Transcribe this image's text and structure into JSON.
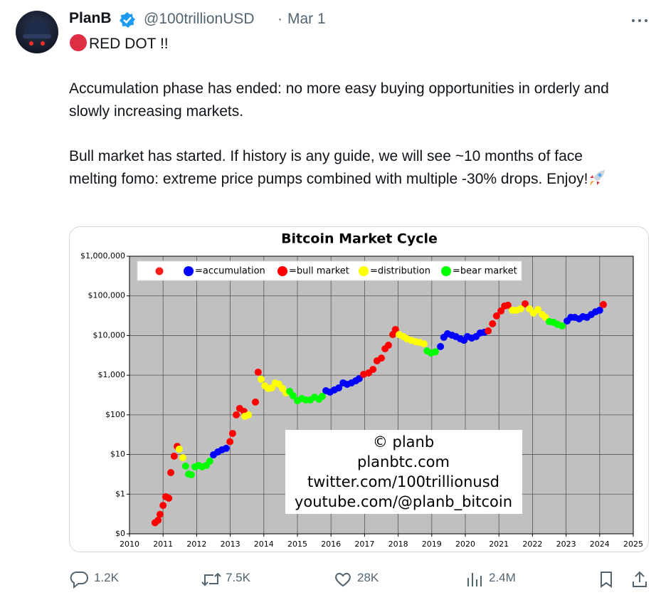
{
  "post": {
    "author": "PlanB",
    "handle": "@100trillionUSD",
    "separator": "·",
    "date": "Mar 1",
    "paragraphs": [
      "RED DOT !!",
      "Accumulation phase has ended: no more easy buying opportunities in orderly and slowly increasing markets.",
      "Bull market has started. If history is any guide, we will see ~10 months of face melting fomo: extreme price pumps combined with multiple -30% drops. Enjoy!"
    ],
    "stats": {
      "replies": "1.2K",
      "reposts": "7.5K",
      "likes": "28K",
      "views": "2.4M"
    }
  },
  "chart_data": {
    "type": "scatter",
    "title": "Bitcoin Market Cycle",
    "xlim": [
      2010,
      2025
    ],
    "xticks": [
      2010,
      2011,
      2012,
      2013,
      2014,
      2015,
      2016,
      2017,
      2018,
      2019,
      2020,
      2021,
      2022,
      2023,
      2024,
      2025
    ],
    "ylim": [
      0.1,
      1000000
    ],
    "ylog": true,
    "yticks": [
      {
        "value": 0.1,
        "label": "$0"
      },
      {
        "value": 1,
        "label": "$1"
      },
      {
        "value": 10,
        "label": "$10"
      },
      {
        "value": 100,
        "label": "$100"
      },
      {
        "value": 1000,
        "label": "$1,000"
      },
      {
        "value": 10000,
        "label": "$10,000"
      },
      {
        "value": 100000,
        "label": "$100,000"
      },
      {
        "value": 1000000,
        "label": "$1,000,000"
      }
    ],
    "grid": true,
    "legend": "top-left",
    "annotations": [
      "© planb",
      "planbtc.com",
      "twitter.com/100trillionusd",
      "youtube.com/@planb_bitcoin"
    ],
    "series": [
      {
        "name": "=accumulation",
        "color": "#0000ff",
        "x": [
          2012.5,
          2012.63,
          2012.75,
          2012.88,
          2015.85,
          2015.97,
          2016.1,
          2016.23,
          2016.36,
          2016.48,
          2016.61,
          2016.74,
          2016.84,
          2019.26,
          2019.36,
          2019.47,
          2019.6,
          2019.72,
          2019.85,
          2019.96,
          2020.06,
          2020.19,
          2020.32,
          2020.44,
          2020.57,
          2023.03,
          2023.14,
          2023.26,
          2023.39,
          2023.5,
          2023.62,
          2023.75,
          2023.88,
          2024.0
        ],
        "values": [
          9.8,
          11.6,
          13.1,
          14.3,
          406,
          374,
          424,
          479,
          640,
          589,
          640,
          724,
          820,
          5270,
          9020,
          11100,
          10200,
          9400,
          8300,
          7600,
          9400,
          8650,
          9400,
          11600,
          12100,
          23300,
          28700,
          28700,
          26400,
          29900,
          28700,
          33900,
          39900,
          43400
        ]
      },
      {
        "name": "=bull market",
        "color": "#ff0000",
        "x": [
          2010.76,
          2010.85,
          2010.91,
          2011.0,
          2011.08,
          2011.17,
          2011.23,
          2011.33,
          2011.42,
          2012.99,
          2013.07,
          2013.18,
          2013.28,
          2013.41,
          2013.75,
          2013.83,
          2016.97,
          2017.12,
          2017.25,
          2017.37,
          2017.5,
          2017.61,
          2017.71,
          2017.84,
          2017.92,
          2020.68,
          2020.81,
          2020.93,
          2021.06,
          2021.17,
          2021.27,
          2021.78,
          2024.11
        ],
        "values": [
          0.19,
          0.22,
          0.31,
          0.52,
          0.86,
          0.79,
          3.5,
          9.1,
          16,
          21,
          34,
          100,
          145,
          122,
          210,
          1190,
          1050,
          1140,
          1400,
          2300,
          2700,
          4650,
          5700,
          10600,
          14200,
          13100,
          19800,
          31200,
          41600,
          55600,
          58000,
          63000,
          60400
        ]
      },
      {
        "name": "=distribution",
        "color": "#ffff00",
        "x": [
          2011.48,
          2011.59,
          2013.43,
          2013.54,
          2013.92,
          2014.03,
          2014.13,
          2014.24,
          2014.34,
          2014.45,
          2014.56,
          2014.66,
          2018.03,
          2018.16,
          2018.26,
          2018.39,
          2018.52,
          2018.64,
          2018.77,
          2021.4,
          2021.53,
          2021.65,
          2021.91,
          2022.03,
          2022.16,
          2022.29,
          2022.39
        ],
        "values": [
          13.7,
          8.3,
          92,
          100,
          790,
          540,
          460,
          480,
          640,
          590,
          460,
          360,
          10600,
          9400,
          8300,
          7600,
          7000,
          6700,
          6200,
          43400,
          43400,
          47100,
          47100,
          36800,
          45200,
          33900,
          28700
        ]
      },
      {
        "name": "=bear market",
        "color": "#00ff00",
        "x": [
          2011.67,
          2011.76,
          2011.84,
          2011.95,
          2012.06,
          2012.16,
          2012.29,
          2012.39,
          2014.77,
          2014.87,
          2015.0,
          2015.13,
          2015.25,
          2015.38,
          2015.51,
          2015.64,
          2015.74,
          2018.86,
          2018.98,
          2019.11,
          2022.5,
          2022.63,
          2022.75,
          2022.88
        ],
        "values": [
          5.1,
          3.2,
          3.1,
          4.9,
          5.3,
          4.9,
          5.3,
          6.8,
          390,
          304,
          228,
          258,
          237,
          237,
          280,
          247,
          292,
          4100,
          3600,
          3900,
          22400,
          21500,
          19000,
          17500
        ]
      }
    ]
  }
}
